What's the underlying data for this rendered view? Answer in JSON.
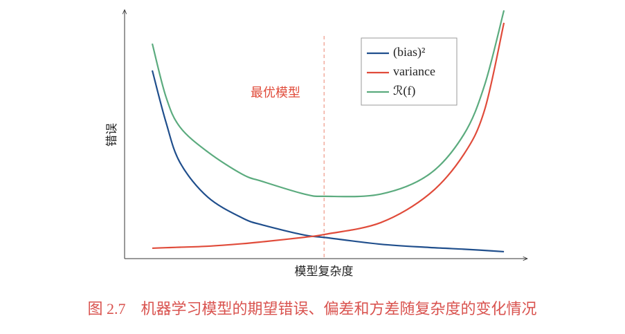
{
  "chart_data": {
    "type": "line",
    "caption": "图 2.7　机器学习模型的期望错误、偏差和方差随复杂度的变化情况",
    "xlabel": "模型复杂度",
    "ylabel": "错误",
    "xlim": [
      0,
      10
    ],
    "ylim": [
      0,
      10
    ],
    "x": [
      0.69,
      1.03,
      1.38,
      2.07,
      2.93,
      3.45,
      4.48,
      5.0,
      6.38,
      7.59,
      8.45,
      8.97,
      9.45
    ],
    "series": [
      {
        "name": "(bias)²",
        "color": "#1f4e8c",
        "values": [
          7.58,
          5.5,
          3.87,
          2.48,
          1.64,
          1.35,
          0.95,
          0.85,
          0.58,
          0.45,
          0.38,
          0.33,
          0.28
        ]
      },
      {
        "name": "variance",
        "color": "#e04b3a",
        "values": [
          0.42,
          0.44,
          0.46,
          0.5,
          0.6,
          0.68,
          0.86,
          0.98,
          1.45,
          2.6,
          4.2,
          6.0,
          9.5
        ]
      },
      {
        "name": "ℛ(f)",
        "color": "#5bab7e",
        "values": [
          8.66,
          6.52,
          5.3,
          4.3,
          3.4,
          3.1,
          2.6,
          2.51,
          2.6,
          3.4,
          5.0,
          7.0,
          10.0
        ]
      }
    ],
    "annotation": {
      "text": "最优模型",
      "x": 4.97,
      "color": "#e04b3a"
    },
    "legend": "upper right"
  }
}
